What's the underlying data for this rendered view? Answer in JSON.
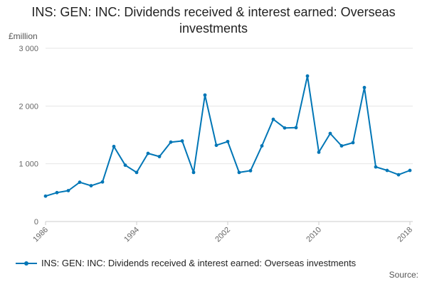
{
  "chart_data": {
    "type": "line",
    "title": "INS: GEN: INC: Dividends received & interest earned: Overseas investments",
    "ylabel": "£million",
    "ylim": [
      0,
      3000
    ],
    "yticks": [
      0,
      1000,
      2000,
      3000
    ],
    "ytick_labels": [
      "0",
      "1 000",
      "2 000",
      "3 000"
    ],
    "xlim": [
      1986,
      2018
    ],
    "xticks": [
      1986,
      1994,
      2002,
      2010,
      2018
    ],
    "xtick_labels": [
      "1986",
      "1994",
      "2002",
      "2010",
      "2018"
    ],
    "grid": true,
    "legend": "bottom",
    "color": "#0076b6",
    "series": [
      {
        "name": "INS: GEN: INC: Dividends received & interest earned: Overseas investments",
        "x": [
          1986,
          1987,
          1988,
          1989,
          1990,
          1991,
          1992,
          1993,
          1994,
          1995,
          1996,
          1997,
          1998,
          1999,
          2000,
          2001,
          2002,
          2003,
          2004,
          2005,
          2006,
          2007,
          2008,
          2009,
          2010,
          2011,
          2012,
          2013,
          2014,
          2015,
          2016,
          2017,
          2018
        ],
        "values": [
          440,
          500,
          535,
          680,
          620,
          685,
          1300,
          975,
          850,
          1180,
          1125,
          1375,
          1395,
          850,
          2190,
          1320,
          1385,
          850,
          880,
          1310,
          1770,
          1620,
          1625,
          2520,
          1200,
          1525,
          1310,
          1365,
          2320,
          945,
          885,
          810,
          885
        ]
      }
    ]
  },
  "source_label": "Source:"
}
